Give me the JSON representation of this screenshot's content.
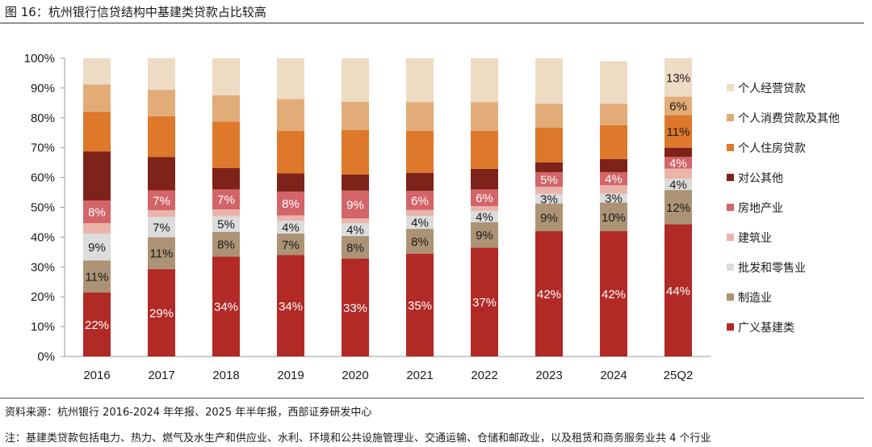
{
  "figure_title": "图 16：杭州银行信贷结构中基建类贷款占比较高",
  "source_note": "资料来源：杭州银行 2016-2024 年年报、2025 年半年报，西部证券研发中心",
  "footnote": "注：基建类贷款包括电力、热力、燃气及水生产和供应业、水利、环境和公共设施管理业、交通运输、仓储和邮政业，以及租赁和商务服务业共 4 个行业",
  "chart_data": {
    "type": "bar",
    "stacked": true,
    "categories": [
      "2016",
      "2017",
      "2018",
      "2019",
      "2020",
      "2021",
      "2022",
      "2023",
      "2024",
      "25Q2"
    ],
    "ylim": [
      0,
      100
    ],
    "yticks": [
      "0%",
      "10%",
      "20%",
      "30%",
      "40%",
      "50%",
      "60%",
      "70%",
      "80%",
      "90%",
      "100%"
    ],
    "grid": false,
    "legend_position": "right",
    "series": [
      {
        "name": "广义基建类",
        "color": "#B22A26",
        "label_color": "#ffffff",
        "values": [
          21.5,
          29.3,
          33.5,
          34,
          32.8,
          34.5,
          36.5,
          42,
          42,
          44.3
        ],
        "labels": [
          "22%",
          "29%",
          "34%",
          "34%",
          "33%",
          "35%",
          "37%",
          "42%",
          "42%",
          "44%"
        ]
      },
      {
        "name": "制造业",
        "color": "#AD9376",
        "label_color": "#1a1a1a",
        "values": [
          10.7,
          10.7,
          8.3,
          7.2,
          7.6,
          8.3,
          8.5,
          9.3,
          9.6,
          11.5
        ],
        "labels": [
          "11%",
          "11%",
          "8%",
          "7%",
          "8%",
          "8%",
          "9%",
          "9%",
          "10%",
          "12%"
        ]
      },
      {
        "name": "批发和零售业",
        "color": "#DCDCDC",
        "label_color": "#1a1a1a",
        "values": [
          9,
          6.8,
          5.2,
          4.3,
          4.3,
          4.3,
          3.8,
          3.2,
          3,
          3.8
        ],
        "labels": [
          "9%",
          "7%",
          "5%",
          "4%",
          "4%",
          "4%",
          "4%",
          "3%",
          "3%",
          "4%"
        ]
      },
      {
        "name": "建筑业",
        "color": "#EAB4AB",
        "label_color": "#1a1a1a",
        "values": [
          3.5,
          2.2,
          2.3,
          1.8,
          1.6,
          2,
          1.6,
          2.4,
          2.8,
          3.4
        ],
        "labels": [
          "",
          "",
          "",
          "",
          "",
          "",
          "",
          "",
          "",
          ""
        ]
      },
      {
        "name": "房地产业",
        "color": "#D36468",
        "label_color": "#ffffff",
        "values": [
          7.6,
          6.7,
          6.7,
          8,
          9.3,
          6.4,
          5.6,
          4.9,
          4.4,
          3.9
        ],
        "labels": [
          "8%",
          "7%",
          "7%",
          "8%",
          "9%",
          "6%",
          "6%",
          "5%",
          "4%",
          "4%"
        ]
      },
      {
        "name": "对公其他",
        "color": "#7E2319",
        "label_color": "#ffffff",
        "values": [
          16.4,
          11.2,
          7.2,
          6.1,
          5.4,
          6.1,
          6.9,
          3.3,
          4.4,
          3.1
        ],
        "labels": [
          "",
          "",
          "",
          "",
          "",
          "",
          "",
          "",
          "",
          ""
        ]
      },
      {
        "name": "个人住房贷款",
        "color": "#DE782A",
        "label_color": "#1a1a1a",
        "values": [
          13.3,
          13.6,
          15.5,
          14.2,
          14.9,
          14,
          12.8,
          11.6,
          11.4,
          10.9
        ],
        "labels": [
          "",
          "",
          "",
          "",
          "",
          "",
          "",
          "",
          "",
          "11%"
        ]
      },
      {
        "name": "个人消费贷款及其他",
        "color": "#E2AC78",
        "label_color": "#1a1a1a",
        "values": [
          9.2,
          8.9,
          8.9,
          10.7,
          9.5,
          9.7,
          9.6,
          8,
          7.1,
          6.2
        ],
        "labels": [
          "",
          "",
          "",
          "",
          "",
          "",
          "",
          "",
          "",
          "6%"
        ]
      },
      {
        "name": "个人经营贷款",
        "color": "#EEDBC3",
        "label_color": "#1a1a1a",
        "values": [
          8.8,
          10.6,
          12.4,
          13.7,
          14.6,
          14.7,
          14.7,
          15.3,
          14.3,
          12.9
        ],
        "labels": [
          "",
          "",
          "",
          "",
          "",
          "",
          "",
          "",
          "",
          "13%"
        ]
      }
    ]
  }
}
